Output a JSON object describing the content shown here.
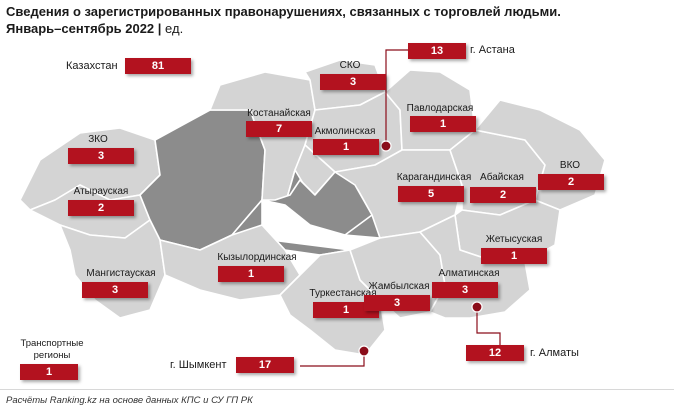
{
  "header": {
    "title_line1": "Сведения о зарегистрированных правонарушениях, связанных с торговлей людьми.",
    "title_line2": "Январь–сентябрь 2022",
    "unit": "ед."
  },
  "total": {
    "label": "Казахстан",
    "value": "81"
  },
  "regions": [
    {
      "key": "sko",
      "label": "СКО",
      "value": "3"
    },
    {
      "key": "kostanay",
      "label": "Костанайская",
      "value": "7"
    },
    {
      "key": "akmola",
      "label": "Акмолинская",
      "value": "1"
    },
    {
      "key": "pavlodar",
      "label": "Павлодарская",
      "value": "1"
    },
    {
      "key": "zko",
      "label": "ЗКО",
      "value": "3"
    },
    {
      "key": "atyrau",
      "label": "Атырауская",
      "value": "2"
    },
    {
      "key": "karaganda",
      "label": "Карагандинская",
      "value": "5"
    },
    {
      "key": "abay",
      "label": "Абайская",
      "value": "2"
    },
    {
      "key": "vko",
      "label": "ВКО",
      "value": "2"
    },
    {
      "key": "zhetysu",
      "label": "Жетысуская",
      "value": "1"
    },
    {
      "key": "kyzylorda",
      "label": "Кызылординская",
      "value": "1"
    },
    {
      "key": "mangystau",
      "label": "Мангистауская",
      "value": "3"
    },
    {
      "key": "turkestan",
      "label": "Туркестанская",
      "value": "1"
    },
    {
      "key": "zhambyl",
      "label": "Жамбылская",
      "value": "3"
    },
    {
      "key": "almaty_region",
      "label": "Алматинская",
      "value": "3"
    }
  ],
  "cities": [
    {
      "key": "astana",
      "label": "г. Астана",
      "value": "13"
    },
    {
      "key": "almaty",
      "label": "г. Алматы",
      "value": "12"
    },
    {
      "key": "shymkent",
      "label": "г. Шымкент",
      "value": "17"
    }
  ],
  "transport": {
    "label_line1": "Транспортные",
    "label_line2": "регионы",
    "value": "1"
  },
  "source": "Расчёты Ranking.kz на основе данных КПС и СУ ГП РК",
  "colors": {
    "badge": "#b3121f",
    "land": "#d4d4d4",
    "land_dark": "#8c8c8c",
    "border": "#ffffff",
    "marker": "#8b0d1a"
  }
}
